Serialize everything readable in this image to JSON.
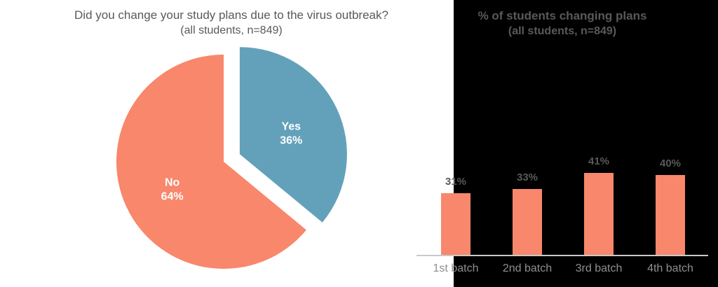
{
  "page": {
    "background_left": "#FFFFFF",
    "background_right": "#000000",
    "title_color": "#595959"
  },
  "chart_data": [
    {
      "type": "pie",
      "title": "Did you change your study plans due to the virus outbreak?",
      "subtitle": "(all students, n=849)",
      "labels": [
        "Yes",
        "No"
      ],
      "values": [
        36,
        64
      ],
      "value_labels": [
        "36%",
        "64%"
      ],
      "colors": [
        "#63A1BA",
        "#F8876C"
      ],
      "slice_label_color": "#FFFFFF",
      "start_angle_deg": 0,
      "direction": "clockwise",
      "exploded_slice": "Yes",
      "legend": "none"
    },
    {
      "type": "bar",
      "title": "% of students changing plans",
      "subtitle": "(all students, n=849)",
      "categories": [
        "1st batch",
        "2nd batch",
        "3rd batch",
        "4th batch"
      ],
      "values": [
        31,
        33,
        41,
        40
      ],
      "value_labels": [
        "31%",
        "33%",
        "41%",
        "40%"
      ],
      "bar_color": "#F8876C",
      "value_label_color": "#595959",
      "category_label_color": "#8F8F8F",
      "axis_line_color": "#C9C9C9",
      "ylim": [
        0,
        45
      ],
      "grid": false,
      "legend": "none"
    }
  ]
}
